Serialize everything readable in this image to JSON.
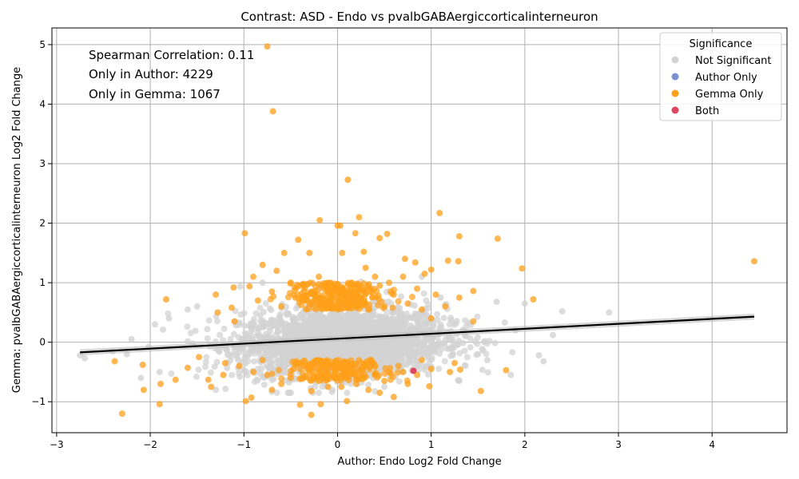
{
  "chart_data": {
    "type": "scatter",
    "title": "Contrast: ASD - Endo vs pvalbGABAergiccorticalinterneuron",
    "xlabel": "Author: Endo Log2 Fold Change",
    "ylabel": "Gemma: pvalbGABAergiccorticalinterneuron Log2 Fold Change",
    "xlim": [
      -3.05,
      4.8
    ],
    "ylim": [
      -1.52,
      5.28
    ],
    "xticks": [
      -3,
      -2,
      -1,
      0,
      1,
      2,
      3,
      4
    ],
    "yticks": [
      -1,
      0,
      1,
      2,
      3,
      4,
      5
    ],
    "grid": true,
    "annotations": [
      "Spearman Correlation: 0.11",
      "Only in Author: 4229",
      "Only in Gemma: 1067"
    ],
    "legend": {
      "title": "Significance",
      "position": "top-right",
      "entries": [
        {
          "label": "Not Significant",
          "color": "#d3d3d3"
        },
        {
          "label": "Author Only",
          "color": "#7b8fd6"
        },
        {
          "label": "Gemma Only",
          "color": "#ff9f1a"
        },
        {
          "label": "Both",
          "color": "#e0455f"
        }
      ]
    },
    "regression_line": {
      "x": [
        -2.75,
        4.45
      ],
      "y": [
        -0.17,
        0.43
      ],
      "color": "#000000"
    },
    "series": [
      {
        "name": "Gemma Only",
        "color": "#ff9f1a",
        "points": [
          [
            -0.75,
            4.97
          ],
          [
            -0.69,
            3.88
          ],
          [
            0.11,
            2.73
          ],
          [
            1.09,
            2.17
          ],
          [
            -0.19,
            2.05
          ],
          [
            0.23,
            2.1
          ],
          [
            -0.99,
            1.83
          ],
          [
            0.53,
            1.82
          ],
          [
            1.3,
            1.78
          ],
          [
            1.71,
            1.74
          ],
          [
            -0.42,
            1.72
          ],
          [
            0.45,
            1.75
          ],
          [
            4.45,
            1.36
          ],
          [
            1.97,
            1.24
          ],
          [
            0.03,
            1.96
          ],
          [
            0.0,
            1.96
          ],
          [
            0.19,
            1.83
          ],
          [
            -0.57,
            1.5
          ],
          [
            0.05,
            1.5
          ],
          [
            0.28,
            1.52
          ],
          [
            1.18,
            1.37
          ],
          [
            1.29,
            1.36
          ],
          [
            0.72,
            1.4
          ],
          [
            -0.8,
            1.3
          ],
          [
            0.83,
            1.34
          ],
          [
            -0.3,
            1.5
          ],
          [
            2.09,
            0.72
          ],
          [
            -1.83,
            0.72
          ],
          [
            1.45,
            0.86
          ],
          [
            1.45,
            0.35
          ],
          [
            -2.38,
            -0.32
          ],
          [
            -2.3,
            -1.2
          ],
          [
            -2.07,
            -0.8
          ],
          [
            -1.9,
            -1.04
          ],
          [
            -1.89,
            -0.7
          ],
          [
            -1.73,
            -0.63
          ],
          [
            -2.08,
            -0.38
          ],
          [
            1.53,
            -0.82
          ],
          [
            1.8,
            -0.47
          ],
          [
            1.31,
            -0.46
          ],
          [
            0.98,
            -0.74
          ],
          [
            -0.28,
            -1.22
          ],
          [
            -0.18,
            -1.04
          ],
          [
            -0.4,
            -1.05
          ],
          [
            -0.98,
            -0.99
          ],
          [
            -0.92,
            -0.93
          ],
          [
            0.6,
            -0.92
          ],
          [
            0.1,
            -0.99
          ],
          [
            -0.28,
            -0.82
          ],
          [
            0.33,
            -0.8
          ],
          [
            0.04,
            -0.75
          ],
          [
            -1.11,
            0.92
          ],
          [
            -0.94,
            0.94
          ],
          [
            -1.3,
            0.8
          ],
          [
            -1.13,
            0.58
          ],
          [
            -1.28,
            0.5
          ],
          [
            -1.1,
            0.35
          ],
          [
            -1.48,
            -0.25
          ],
          [
            -1.38,
            -0.63
          ],
          [
            -1.35,
            -0.75
          ],
          [
            -1.6,
            -0.43
          ],
          [
            -1.22,
            -0.55
          ],
          [
            0.93,
            1.15
          ],
          [
            1.0,
            1.22
          ],
          [
            -0.65,
            1.2
          ],
          [
            0.4,
            1.1
          ],
          [
            -0.2,
            1.1
          ],
          [
            0.7,
            1.1
          ],
          [
            0.3,
            1.25
          ],
          [
            -0.5,
            1.0
          ],
          [
            -0.9,
            1.1
          ],
          [
            -0.1,
            1.0
          ],
          [
            0.15,
            1.0
          ],
          [
            0.45,
            0.95
          ],
          [
            0.85,
            0.9
          ],
          [
            -0.35,
            0.9
          ],
          [
            0.6,
            0.8
          ],
          [
            -0.7,
            0.85
          ],
          [
            1.05,
            0.8
          ],
          [
            1.3,
            0.75
          ],
          [
            -0.05,
            0.8
          ],
          [
            0.25,
            0.75
          ],
          [
            0.9,
            0.55
          ],
          [
            -0.6,
            0.6
          ],
          [
            1.0,
            0.4
          ],
          [
            0.2,
            0.85
          ],
          [
            -0.15,
            0.95
          ],
          [
            0.55,
            1.0
          ],
          [
            -0.45,
            0.75
          ],
          [
            0.05,
            0.9
          ],
          [
            0.35,
            0.85
          ],
          [
            -0.25,
            0.8
          ],
          [
            0.75,
            0.65
          ],
          [
            -0.85,
            0.7
          ],
          [
            1.15,
            0.6
          ],
          [
            0.1,
            0.7
          ],
          [
            -0.3,
            0.65
          ],
          [
            0.5,
            0.6
          ],
          [
            -0.75,
            -0.55
          ],
          [
            -0.5,
            -0.6
          ],
          [
            -0.2,
            -0.65
          ],
          [
            0.1,
            -0.6
          ],
          [
            0.4,
            -0.55
          ],
          [
            0.7,
            -0.5
          ],
          [
            1.0,
            -0.45
          ],
          [
            -0.9,
            -0.5
          ],
          [
            -0.4,
            -0.45
          ],
          [
            0.25,
            -0.45
          ],
          [
            0.55,
            -0.5
          ],
          [
            0.85,
            -0.55
          ],
          [
            -0.6,
            -0.7
          ],
          [
            -0.1,
            -0.75
          ],
          [
            0.2,
            -0.7
          ],
          [
            0.5,
            -0.65
          ],
          [
            1.2,
            -0.5
          ],
          [
            -1.05,
            -0.4
          ],
          [
            -0.3,
            -0.5
          ],
          [
            0.0,
            -0.45
          ],
          [
            0.65,
            -0.4
          ],
          [
            1.25,
            -0.35
          ],
          [
            -0.8,
            -0.3
          ],
          [
            0.35,
            -0.3
          ],
          [
            -0.45,
            -0.35
          ],
          [
            0.9,
            -0.3
          ],
          [
            -0.15,
            -0.35
          ],
          [
            0.15,
            -0.4
          ],
          [
            0.75,
            -0.7
          ],
          [
            -1.2,
            -0.35
          ],
          [
            -0.7,
            -0.8
          ],
          [
            0.45,
            -0.85
          ]
        ]
      },
      {
        "name": "Both",
        "color": "#e0455f",
        "points": [
          [
            0.81,
            -0.48
          ]
        ]
      },
      {
        "name": "Not Significant",
        "color": "#d3d3d3",
        "points": [
          [
            -2.75,
            -0.22
          ],
          [
            -2.7,
            -0.27
          ],
          [
            -2.4,
            -0.15
          ],
          [
            -2.2,
            0.05
          ],
          [
            -2.1,
            -0.6
          ],
          [
            -1.95,
            0.3
          ],
          [
            -1.8,
            0.4
          ],
          [
            -1.6,
            0.55
          ],
          [
            2.9,
            0.5
          ],
          [
            2.4,
            0.52
          ],
          [
            2.3,
            0.12
          ],
          [
            2.2,
            -0.32
          ],
          [
            2.0,
            0.65
          ],
          [
            1.9,
            0.2
          ],
          [
            1.85,
            -0.55
          ],
          [
            1.7,
            0.68
          ],
          [
            1.6,
            -0.3
          ],
          [
            1.5,
            -0.2
          ],
          [
            -0.8,
            1.0
          ],
          [
            0.5,
            -0.75
          ],
          [
            -1.5,
            0.6
          ],
          [
            -1.3,
            -0.8
          ],
          [
            0.9,
            1.1
          ],
          [
            1.1,
            0.75
          ],
          [
            -0.5,
            -0.85
          ],
          [
            0.3,
            -0.55
          ],
          [
            2.15,
            -0.22
          ],
          [
            -2.25,
            -0.2
          ],
          [
            -1.9,
            -0.5
          ],
          [
            1.3,
            -0.65
          ]
        ]
      }
    ]
  }
}
